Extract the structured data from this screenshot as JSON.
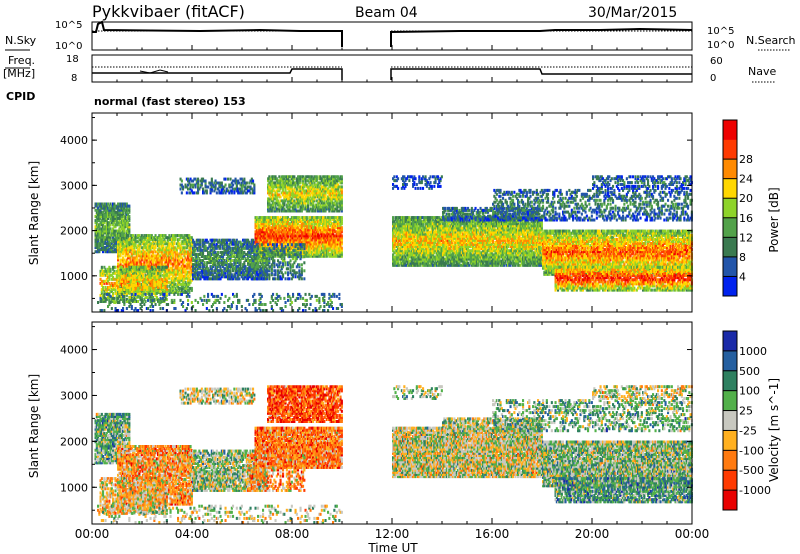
{
  "header": {
    "station": "Pykkvibaer (fitACF)",
    "beam": "Beam 04",
    "date": "30/Mar/2015"
  },
  "side_labels": {
    "nsky": "N.Sky",
    "freq": "Freq.",
    "freq_unit": "[MHz]",
    "cpid": "CPID",
    "nsearch": "N.Search",
    "nave": "Nave"
  },
  "cpid_text": "normal (fast stereo) 153",
  "chart_data": [
    {
      "type": "line",
      "panel": "noise",
      "left_axis_ticks": [
        "10^5",
        "10^0"
      ],
      "right_axis_ticks": [
        "10^5",
        "10^0"
      ],
      "series": [
        {
          "name": "N.Sky",
          "style": "solid"
        },
        {
          "name": "N.Search",
          "style": "dotted"
        }
      ]
    },
    {
      "type": "line",
      "panel": "freq_nave",
      "left_axis_ticks": [
        "18",
        "8"
      ],
      "right_axis_ticks": [
        "60",
        "0"
      ],
      "series": [
        {
          "name": "Freq.",
          "style": "solid"
        },
        {
          "name": "Nave",
          "style": "dotted"
        }
      ]
    },
    {
      "type": "heatmap",
      "panel": "power",
      "ylabel": "Slant Range [km]",
      "y_ticks": [
        1000,
        2000,
        3000,
        4000
      ],
      "ylim": [
        200,
        4600
      ],
      "colorbar": {
        "label": "Power [dB]",
        "ticks": [
          "4",
          "8",
          "12",
          "16",
          "20",
          "24",
          "28"
        ],
        "colors": [
          "#0022ee",
          "#2255aa",
          "#3a7a50",
          "#52a24a",
          "#8ed32a",
          "#ffd700",
          "#ff8a00",
          "#ff3a00",
          "#ee0000"
        ]
      }
    },
    {
      "type": "heatmap",
      "panel": "velocity",
      "ylabel": "Slant Range [km]",
      "xlabel": "Time UT",
      "x_ticks": [
        "00:00",
        "04:00",
        "08:00",
        "12:00",
        "16:00",
        "20:00",
        "00:00"
      ],
      "y_ticks": [
        1000,
        2000,
        3000,
        4000
      ],
      "ylim": [
        200,
        4600
      ],
      "colorbar": {
        "label": "Velocity [m s^-1]",
        "ticks": [
          "1000",
          "500",
          "100",
          "25",
          "-25",
          "-100",
          "-500",
          "-1000"
        ],
        "colors": [
          "#1a2aa8",
          "#245fa0",
          "#2e8060",
          "#52b04a",
          "#c8c8c0",
          "#ffb020",
          "#ff7a10",
          "#ff3a00",
          "#e80000"
        ]
      }
    }
  ]
}
